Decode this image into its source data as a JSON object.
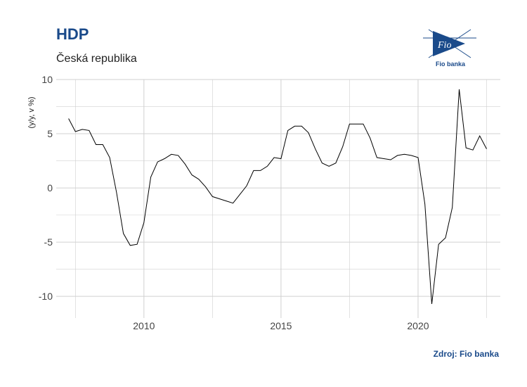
{
  "header": {
    "title": "HDP",
    "subtitle": "Česká republika",
    "logo_text": "Fio banka",
    "source": "Zdroj: Fio banka"
  },
  "colors": {
    "title": "#1a4a8a",
    "grid": "#d0d0d0",
    "line": "#000000"
  },
  "chart_data": {
    "type": "line",
    "title": "HDP",
    "subtitle": "Česká republika",
    "ylabel": "(y/y, v %)",
    "xlabel": "",
    "xlim": [
      2006.8,
      2023.0
    ],
    "ylim": [
      -12.0,
      10.0
    ],
    "x_ticks": [
      2010,
      2015,
      2020
    ],
    "x_tick_labels": [
      "2010",
      "2015",
      "2020"
    ],
    "y_ticks": [
      -10,
      -5,
      0,
      5,
      10
    ],
    "y_tick_labels": [
      "-10",
      "-5",
      "0",
      "5",
      "10"
    ],
    "grid": true,
    "series": [
      {
        "x": [
          2007.25,
          2007.5,
          2007.75,
          2008.0,
          2008.25,
          2008.5,
          2008.75,
          2009.0,
          2009.25,
          2009.5,
          2009.75,
          2010.0,
          2010.25,
          2010.5,
          2010.75,
          2011.0,
          2011.25,
          2011.5,
          2011.75,
          2012.0,
          2012.25,
          2012.5,
          2012.75,
          2013.0,
          2013.25,
          2013.5,
          2013.75,
          2014.0,
          2014.25,
          2014.5,
          2014.75,
          2015.0,
          2015.25,
          2015.5,
          2015.75,
          2016.0,
          2016.25,
          2016.5,
          2016.75,
          2017.0,
          2017.25,
          2017.5,
          2017.75,
          2018.0,
          2018.25,
          2018.5,
          2018.75,
          2019.0,
          2019.25,
          2019.5,
          2019.75,
          2020.0,
          2020.25,
          2020.5,
          2020.75,
          2021.0,
          2021.25,
          2021.5,
          2021.75,
          2022.0,
          2022.25,
          2022.5
        ],
        "values": [
          6.4,
          5.2,
          5.4,
          5.3,
          4.0,
          4.0,
          2.8,
          -0.4,
          -4.2,
          -5.3,
          -5.2,
          -3.2,
          1.0,
          2.4,
          2.7,
          3.1,
          3.0,
          2.2,
          1.2,
          0.8,
          0.1,
          -0.8,
          -1.0,
          -1.2,
          -1.4,
          -0.6,
          0.2,
          1.6,
          1.6,
          2.0,
          2.8,
          2.7,
          5.3,
          5.7,
          5.7,
          5.1,
          3.6,
          2.3,
          2.0,
          2.3,
          3.8,
          5.9,
          5.9,
          5.9,
          4.6,
          2.8,
          2.7,
          2.6,
          3.0,
          3.1,
          3.0,
          2.8,
          -1.5,
          -10.7,
          -5.2,
          -4.6,
          -1.8,
          9.1,
          3.7,
          3.5,
          4.8,
          3.6
        ]
      }
    ]
  }
}
